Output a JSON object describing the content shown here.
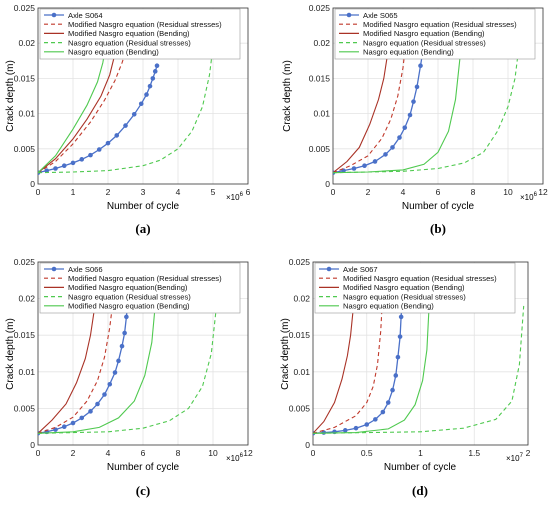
{
  "panels": [
    {
      "caption": "(a)",
      "xlabel": "Number of cycle",
      "ylabel": "Crack depth (m)",
      "multiplier_base": "×10",
      "multiplier_exp": "6",
      "xticks": [
        "0",
        "1",
        "2",
        "3",
        "4",
        "5",
        "6"
      ],
      "yticks": [
        "0",
        "0.005",
        "0.01",
        "0.015",
        "0.02",
        "0.025"
      ],
      "legend": [
        "Axle S064",
        "Modified Nasgro equation (Residual stresses)",
        "Modified Nasgro equation (Bending)",
        "Nasgro equation (Residual stresses)",
        "Nasgro equation (Bending)"
      ]
    },
    {
      "caption": "(b)",
      "xlabel": "Number of cycle",
      "ylabel": "Crack depth (m)",
      "multiplier_base": "×10",
      "multiplier_exp": "6",
      "xticks": [
        "0",
        "2",
        "4",
        "6",
        "8",
        "10",
        "12"
      ],
      "yticks": [
        "0",
        "0.005",
        "0.01",
        "0.015",
        "0.02",
        "0.025"
      ],
      "legend": [
        "Axle S065",
        "Modified Nasgro equation (Residual stresses)",
        "Modified Nasgro equation (Bending)",
        "Nasgro equation (Residual stresses)",
        "Nasgro equation (Bending)"
      ]
    },
    {
      "caption": "(c)",
      "xlabel": "Number of cycle",
      "ylabel": "Crack depth (m)",
      "multiplier_base": "×10",
      "multiplier_exp": "6",
      "xticks": [
        "0",
        "2",
        "4",
        "6",
        "8",
        "10",
        "12"
      ],
      "yticks": [
        "0",
        "0.005",
        "0.01",
        "0.015",
        "0.02",
        "0.025"
      ],
      "legend": [
        "Axle S066",
        "Modified Nasgro equation (Residual stresses)",
        "Modified Nasgro equation(Bending)",
        "Nasgro equation (Residual stresses)",
        "Modified Nasgro equation (Bending)"
      ]
    },
    {
      "caption": "(d)",
      "xlabel": "Number of cycle",
      "ylabel": "Crack depth (m)",
      "multiplier_base": "×10",
      "multiplier_exp": "7",
      "xticks": [
        "0",
        "0.5",
        "1",
        "1.5",
        "2"
      ],
      "yticks": [
        "0",
        "0.005",
        "0.01",
        "0.015",
        "0.02",
        "0.025"
      ],
      "legend": [
        "Axle S067",
        "Modified Nasgro equation (Residual stresses)",
        "Modified Nasgro equation (Bending)",
        "Nasgro equation (Residual stresses)",
        "Nasgro equation (Bending)"
      ]
    }
  ],
  "chart_data": [
    {
      "type": "line",
      "xlim": [
        0,
        6
      ],
      "ylim": [
        0,
        0.025
      ],
      "x_scale": "×10^6",
      "grid": true,
      "legend_position": "top-left",
      "series": [
        {
          "name": "Axle S064",
          "color": "#4a70c8",
          "style": "solid-markers",
          "x": [
            0,
            0.25,
            0.5,
            0.75,
            1.0,
            1.25,
            1.5,
            1.75,
            2.0,
            2.25,
            2.5,
            2.75,
            2.95,
            3.1,
            3.2,
            3.28,
            3.35,
            3.4
          ],
          "y": [
            0.0016,
            0.0019,
            0.0022,
            0.0026,
            0.003,
            0.0035,
            0.0041,
            0.0049,
            0.0058,
            0.0069,
            0.0083,
            0.0099,
            0.0114,
            0.0127,
            0.0139,
            0.015,
            0.016,
            0.0168
          ]
        },
        {
          "name": "Modified Nasgro equation (Residual stresses)",
          "color": "#c0392b",
          "style": "dashed",
          "x": [
            0,
            0.5,
            1.0,
            1.5,
            1.9,
            2.2,
            2.4,
            2.55,
            2.65
          ],
          "y": [
            0.0016,
            0.0032,
            0.0057,
            0.0088,
            0.0119,
            0.0147,
            0.0172,
            0.0195,
            0.0215
          ]
        },
        {
          "name": "Modified Nasgro equation (Bending)",
          "color": "#a93226",
          "style": "solid",
          "x": [
            0,
            0.5,
            1.0,
            1.4,
            1.8,
            2.05,
            2.2,
            2.3
          ],
          "y": [
            0.0016,
            0.0036,
            0.0064,
            0.0092,
            0.0125,
            0.0155,
            0.0185,
            0.021
          ]
        },
        {
          "name": "Nasgro equation (Residual stresses)",
          "color": "#4fc94f",
          "style": "dashed",
          "x": [
            0,
            1,
            2,
            3,
            3.5,
            4,
            4.4,
            4.7,
            4.9,
            5.0
          ],
          "y": [
            0.0016,
            0.0017,
            0.0019,
            0.0026,
            0.0034,
            0.005,
            0.0075,
            0.011,
            0.0155,
            0.0195
          ]
        },
        {
          "name": "Nasgro equation (Bending)",
          "color": "#4fc94f",
          "style": "solid",
          "x": [
            0,
            0.5,
            1.0,
            1.4,
            1.7,
            1.85,
            1.95
          ],
          "y": [
            0.0016,
            0.004,
            0.0078,
            0.0112,
            0.0145,
            0.0172,
            0.02
          ]
        }
      ]
    },
    {
      "type": "line",
      "xlim": [
        0,
        12
      ],
      "ylim": [
        0,
        0.025
      ],
      "x_scale": "×10^6",
      "grid": true,
      "legend_position": "top-left",
      "series": [
        {
          "name": "Axle S065",
          "color": "#4a70c8",
          "style": "solid-markers",
          "x": [
            0,
            0.6,
            1.2,
            1.8,
            2.4,
            3.0,
            3.4,
            3.8,
            4.1,
            4.4,
            4.6,
            4.8,
            5.0,
            5.2
          ],
          "y": [
            0.0016,
            0.0019,
            0.0022,
            0.0026,
            0.0032,
            0.0042,
            0.0052,
            0.0066,
            0.008,
            0.0098,
            0.0117,
            0.0138,
            0.0168,
            0.0198
          ]
        },
        {
          "name": "Modified Nasgro equation (Residual stresses)",
          "color": "#c0392b",
          "style": "dashed",
          "x": [
            0,
            1,
            2,
            2.8,
            3.3,
            3.7,
            4.0,
            4.2
          ],
          "y": [
            0.0016,
            0.0026,
            0.004,
            0.0065,
            0.0092,
            0.0125,
            0.0165,
            0.021
          ]
        },
        {
          "name": "Modified Nasgro equation (Bending)",
          "color": "#a93226",
          "style": "solid",
          "x": [
            0,
            0.8,
            1.5,
            2.1,
            2.6,
            2.9,
            3.1,
            3.25
          ],
          "y": [
            0.0016,
            0.0032,
            0.0052,
            0.0085,
            0.012,
            0.015,
            0.0182,
            0.021
          ]
        },
        {
          "name": "Nasgro equation (Residual stresses)",
          "color": "#4fc94f",
          "style": "dashed",
          "x": [
            0,
            2,
            4,
            6,
            7.5,
            8.6,
            9.4,
            10.0,
            10.4,
            10.6
          ],
          "y": [
            0.0016,
            0.0017,
            0.0018,
            0.0022,
            0.003,
            0.0045,
            0.0075,
            0.011,
            0.015,
            0.019
          ]
        },
        {
          "name": "Nasgro equation (Bending)",
          "color": "#4fc94f",
          "style": "solid",
          "x": [
            0,
            2,
            4,
            5.2,
            6.0,
            6.6,
            7.0,
            7.3
          ],
          "y": [
            0.0016,
            0.0017,
            0.002,
            0.0028,
            0.0045,
            0.0075,
            0.012,
            0.019
          ]
        }
      ]
    },
    {
      "type": "line",
      "xlim": [
        0,
        12
      ],
      "ylim": [
        0,
        0.025
      ],
      "x_scale": "×10^6",
      "grid": true,
      "legend_position": "top-left",
      "series": [
        {
          "name": "Axle S066",
          "color": "#4a70c8",
          "style": "solid-markers",
          "x": [
            0,
            0.5,
            1.0,
            1.5,
            2.0,
            2.5,
            3.0,
            3.4,
            3.8,
            4.1,
            4.4,
            4.6,
            4.8,
            4.95,
            5.05,
            5.15
          ],
          "y": [
            0.0016,
            0.0018,
            0.0021,
            0.0025,
            0.003,
            0.0037,
            0.0046,
            0.0056,
            0.0069,
            0.0083,
            0.0099,
            0.0115,
            0.0135,
            0.0153,
            0.0175,
            0.0198
          ]
        },
        {
          "name": "Modified Nasgro equation (Residual stresses)",
          "color": "#c0392b",
          "style": "dashed",
          "x": [
            0,
            1,
            2,
            2.8,
            3.4,
            3.8,
            4.1,
            4.3
          ],
          "y": [
            0.0016,
            0.0024,
            0.0038,
            0.006,
            0.0088,
            0.012,
            0.016,
            0.02
          ]
        },
        {
          "name": "Modified Nasgro equation(Bending)",
          "color": "#a93226",
          "style": "solid",
          "x": [
            0,
            0.8,
            1.6,
            2.2,
            2.7,
            3.0,
            3.2,
            3.35
          ],
          "y": [
            0.0016,
            0.0034,
            0.0056,
            0.0085,
            0.0118,
            0.015,
            0.0182,
            0.021
          ]
        },
        {
          "name": "Nasgro equation (Residual stresses)",
          "color": "#4fc94f",
          "style": "dashed",
          "x": [
            0,
            2,
            4,
            6,
            7.5,
            8.6,
            9.4,
            9.9,
            10.2
          ],
          "y": [
            0.0016,
            0.0017,
            0.0018,
            0.0023,
            0.0033,
            0.005,
            0.008,
            0.0125,
            0.019
          ]
        },
        {
          "name": "Modified Nasgro equation (Bending)",
          "color": "#4fc94f",
          "style": "solid",
          "x": [
            0,
            2,
            3.5,
            4.6,
            5.5,
            6.1,
            6.5,
            6.7
          ],
          "y": [
            0.0016,
            0.0018,
            0.0024,
            0.0037,
            0.006,
            0.0095,
            0.014,
            0.0192
          ]
        }
      ]
    },
    {
      "type": "line",
      "xlim": [
        0,
        2
      ],
      "ylim": [
        0,
        0.025
      ],
      "x_scale": "×10^7",
      "grid": true,
      "legend_position": "top-left",
      "series": [
        {
          "name": "Axle S067",
          "color": "#4a70c8",
          "style": "solid-markers",
          "x": [
            0,
            0.1,
            0.2,
            0.3,
            0.4,
            0.5,
            0.58,
            0.65,
            0.7,
            0.74,
            0.77,
            0.79,
            0.81,
            0.82,
            0.83
          ],
          "y": [
            0.0016,
            0.0017,
            0.0018,
            0.002,
            0.0023,
            0.0028,
            0.0035,
            0.0045,
            0.0058,
            0.0075,
            0.0095,
            0.012,
            0.0148,
            0.0175,
            0.0198
          ]
        },
        {
          "name": "Modified Nasgro equation (Residual stresses)",
          "color": "#c0392b",
          "style": "dashed",
          "x": [
            0,
            0.2,
            0.4,
            0.5,
            0.56,
            0.6,
            0.63,
            0.65
          ],
          "y": [
            0.0016,
            0.0024,
            0.004,
            0.0058,
            0.008,
            0.011,
            0.0155,
            0.021
          ]
        },
        {
          "name": "Modified Nasgro equation (Bending)",
          "color": "#a93226",
          "style": "solid",
          "x": [
            0,
            0.1,
            0.2,
            0.27,
            0.32,
            0.35,
            0.37,
            0.385
          ],
          "y": [
            0.0016,
            0.0032,
            0.0058,
            0.009,
            0.0122,
            0.015,
            0.018,
            0.021
          ]
        },
        {
          "name": "Nasgro equation (Residual stresses)",
          "color": "#4fc94f",
          "style": "dashed",
          "x": [
            0,
            0.5,
            1.0,
            1.4,
            1.7,
            1.85,
            1.92,
            1.96
          ],
          "y": [
            0.0016,
            0.0017,
            0.0018,
            0.0023,
            0.0035,
            0.006,
            0.011,
            0.019
          ]
        },
        {
          "name": "Nasgro equation (Bending)",
          "color": "#4fc94f",
          "style": "solid",
          "x": [
            0,
            0.4,
            0.7,
            0.85,
            0.95,
            1.02,
            1.06,
            1.08
          ],
          "y": [
            0.0016,
            0.0017,
            0.0022,
            0.0034,
            0.0055,
            0.0088,
            0.013,
            0.019
          ]
        }
      ]
    }
  ]
}
